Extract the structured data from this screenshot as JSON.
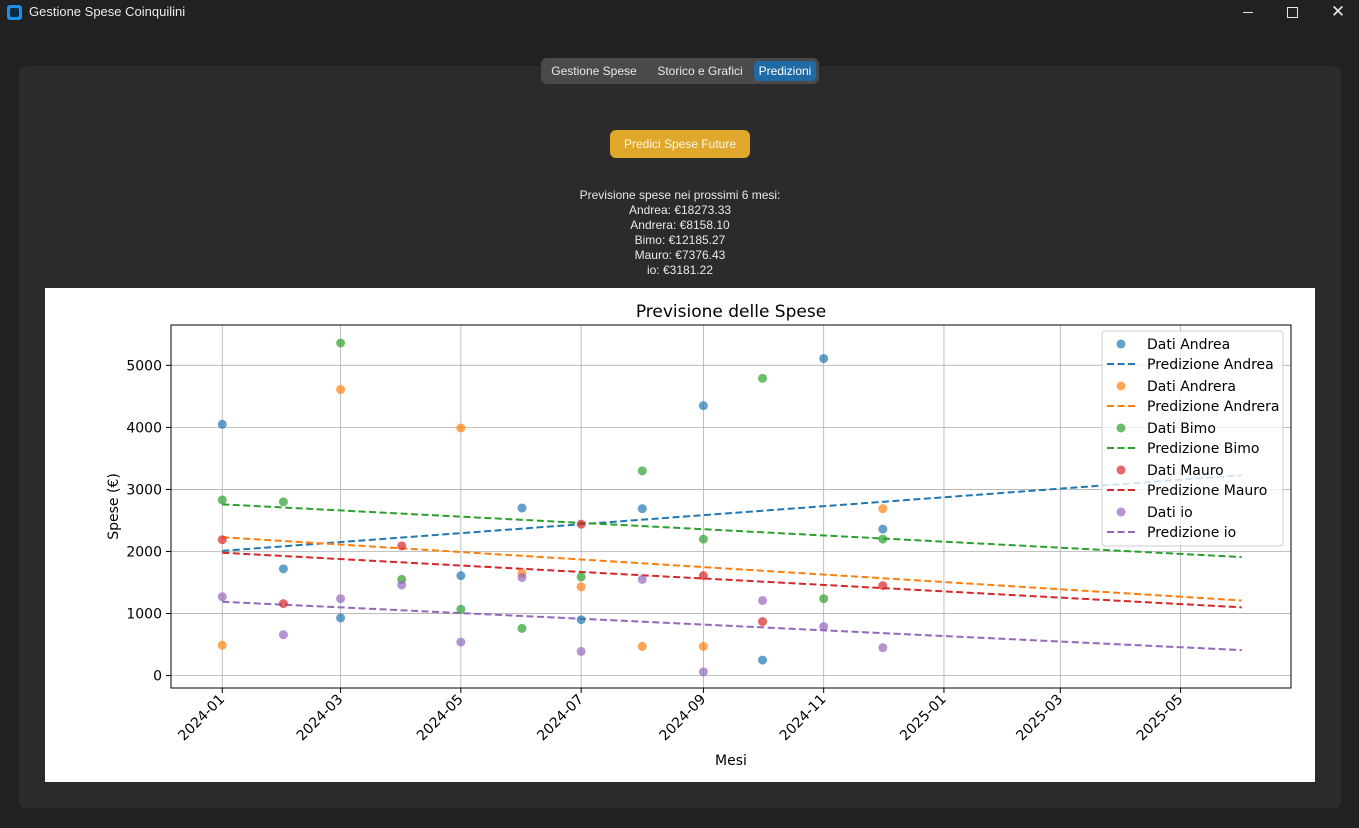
{
  "window": {
    "title": "Gestione Spese Coinquilini",
    "controls": {
      "minimize": "minimize-icon",
      "maximize": "maximize-icon",
      "close": "close-icon"
    }
  },
  "tabs": [
    {
      "label": "Gestione Spese",
      "active": false
    },
    {
      "label": "Storico e Grafici",
      "active": false
    },
    {
      "label": "Predizioni",
      "active": true
    }
  ],
  "colors": {
    "accent_tab": "#1f6aa5",
    "predict_button": "#dfa82a",
    "background": "#212121",
    "panel": "#2b2b2b"
  },
  "predict_button": {
    "label": "Predici Spese Future"
  },
  "prediction_text": {
    "header": "Previsione spese nei prossimi 6 mesi:",
    "lines": [
      "Andrea: €18273.33",
      "Andrera: €8158.10",
      "Bimo: €12185.27",
      "Mauro: €7376.43",
      "io: €3181.22"
    ]
  },
  "chart_data": {
    "type": "scatter",
    "title": "Previsione delle Spese",
    "xlabel": "Mesi",
    "ylabel": "Spese (€)",
    "x_ticks": [
      "2024-01",
      "2024-03",
      "2024-05",
      "2024-07",
      "2024-09",
      "2024-11",
      "2025-01",
      "2025-03",
      "2025-05"
    ],
    "y_ticks": [
      0,
      1000,
      2000,
      3000,
      4000,
      5000
    ],
    "xlim": [
      "2023-12-06",
      "2025-06-26"
    ],
    "ylim": [
      -200,
      5650
    ],
    "grid": true,
    "legend_position": "top-right",
    "series": [
      {
        "name": "Andrea",
        "color": "#1f77b4",
        "scatter_label": "Dati Andrea",
        "line_label": "Predizione Andrea",
        "points": [
          [
            "2024-01",
            4050
          ],
          [
            "2024-02",
            1720
          ],
          [
            "2024-03",
            930
          ],
          [
            "2024-05",
            1610
          ],
          [
            "2024-06",
            2700
          ],
          [
            "2024-07",
            900
          ],
          [
            "2024-08",
            2690
          ],
          [
            "2024-09",
            4350
          ],
          [
            "2024-10",
            250
          ],
          [
            "2024-11",
            5110
          ],
          [
            "2024-12",
            2360
          ]
        ],
        "trend": [
          [
            "2024-01",
            2010
          ],
          [
            "2025-06",
            3230
          ]
        ]
      },
      {
        "name": "Andrera",
        "color": "#ff7f0e",
        "scatter_label": "Dati Andrera",
        "line_label": "Predizione Andrera",
        "points": [
          [
            "2024-01",
            490
          ],
          [
            "2024-03",
            4610
          ],
          [
            "2024-05",
            3990
          ],
          [
            "2024-06",
            1650
          ],
          [
            "2024-07",
            1430
          ],
          [
            "2024-08",
            470
          ],
          [
            "2024-09",
            470
          ],
          [
            "2024-12",
            2690
          ]
        ],
        "trend": [
          [
            "2024-01",
            2230
          ],
          [
            "2025-06",
            1210
          ]
        ]
      },
      {
        "name": "Bimo",
        "color": "#2ca02c",
        "scatter_label": "Dati Bimo",
        "line_label": "Predizione Bimo",
        "points": [
          [
            "2024-01",
            2830
          ],
          [
            "2024-02",
            2800
          ],
          [
            "2024-03",
            5360
          ],
          [
            "2024-04",
            1550
          ],
          [
            "2024-05",
            1070
          ],
          [
            "2024-06",
            760
          ],
          [
            "2024-07",
            1590
          ],
          [
            "2024-08",
            3300
          ],
          [
            "2024-09",
            2200
          ],
          [
            "2024-10",
            4790
          ],
          [
            "2024-11",
            1240
          ],
          [
            "2024-12",
            2200
          ]
        ],
        "trend": [
          [
            "2024-01",
            2760
          ],
          [
            "2025-06",
            1910
          ]
        ]
      },
      {
        "name": "Mauro",
        "color": "#d62728",
        "scatter_label": "Dati Mauro",
        "line_label": "Predizione Mauro",
        "points": [
          [
            "2024-01",
            2190
          ],
          [
            "2024-02",
            1160
          ],
          [
            "2024-04",
            2090
          ],
          [
            "2024-07",
            2440
          ],
          [
            "2024-09",
            1610
          ],
          [
            "2024-10",
            870
          ],
          [
            "2024-12",
            1450
          ]
        ],
        "trend": [
          [
            "2024-01",
            1980
          ],
          [
            "2025-06",
            1100
          ]
        ]
      },
      {
        "name": "io",
        "color": "#9467bd",
        "scatter_label": "Dati io",
        "line_label": "Predizione io",
        "points": [
          [
            "2024-01",
            1270
          ],
          [
            "2024-02",
            660
          ],
          [
            "2024-03",
            1240
          ],
          [
            "2024-04",
            1460
          ],
          [
            "2024-05",
            540
          ],
          [
            "2024-06",
            1580
          ],
          [
            "2024-07",
            390
          ],
          [
            "2024-08",
            1550
          ],
          [
            "2024-09",
            60
          ],
          [
            "2024-10",
            1210
          ],
          [
            "2024-11",
            790
          ],
          [
            "2024-12",
            450
          ]
        ],
        "trend": [
          [
            "2024-01",
            1190
          ],
          [
            "2025-06",
            410
          ]
        ]
      }
    ]
  }
}
